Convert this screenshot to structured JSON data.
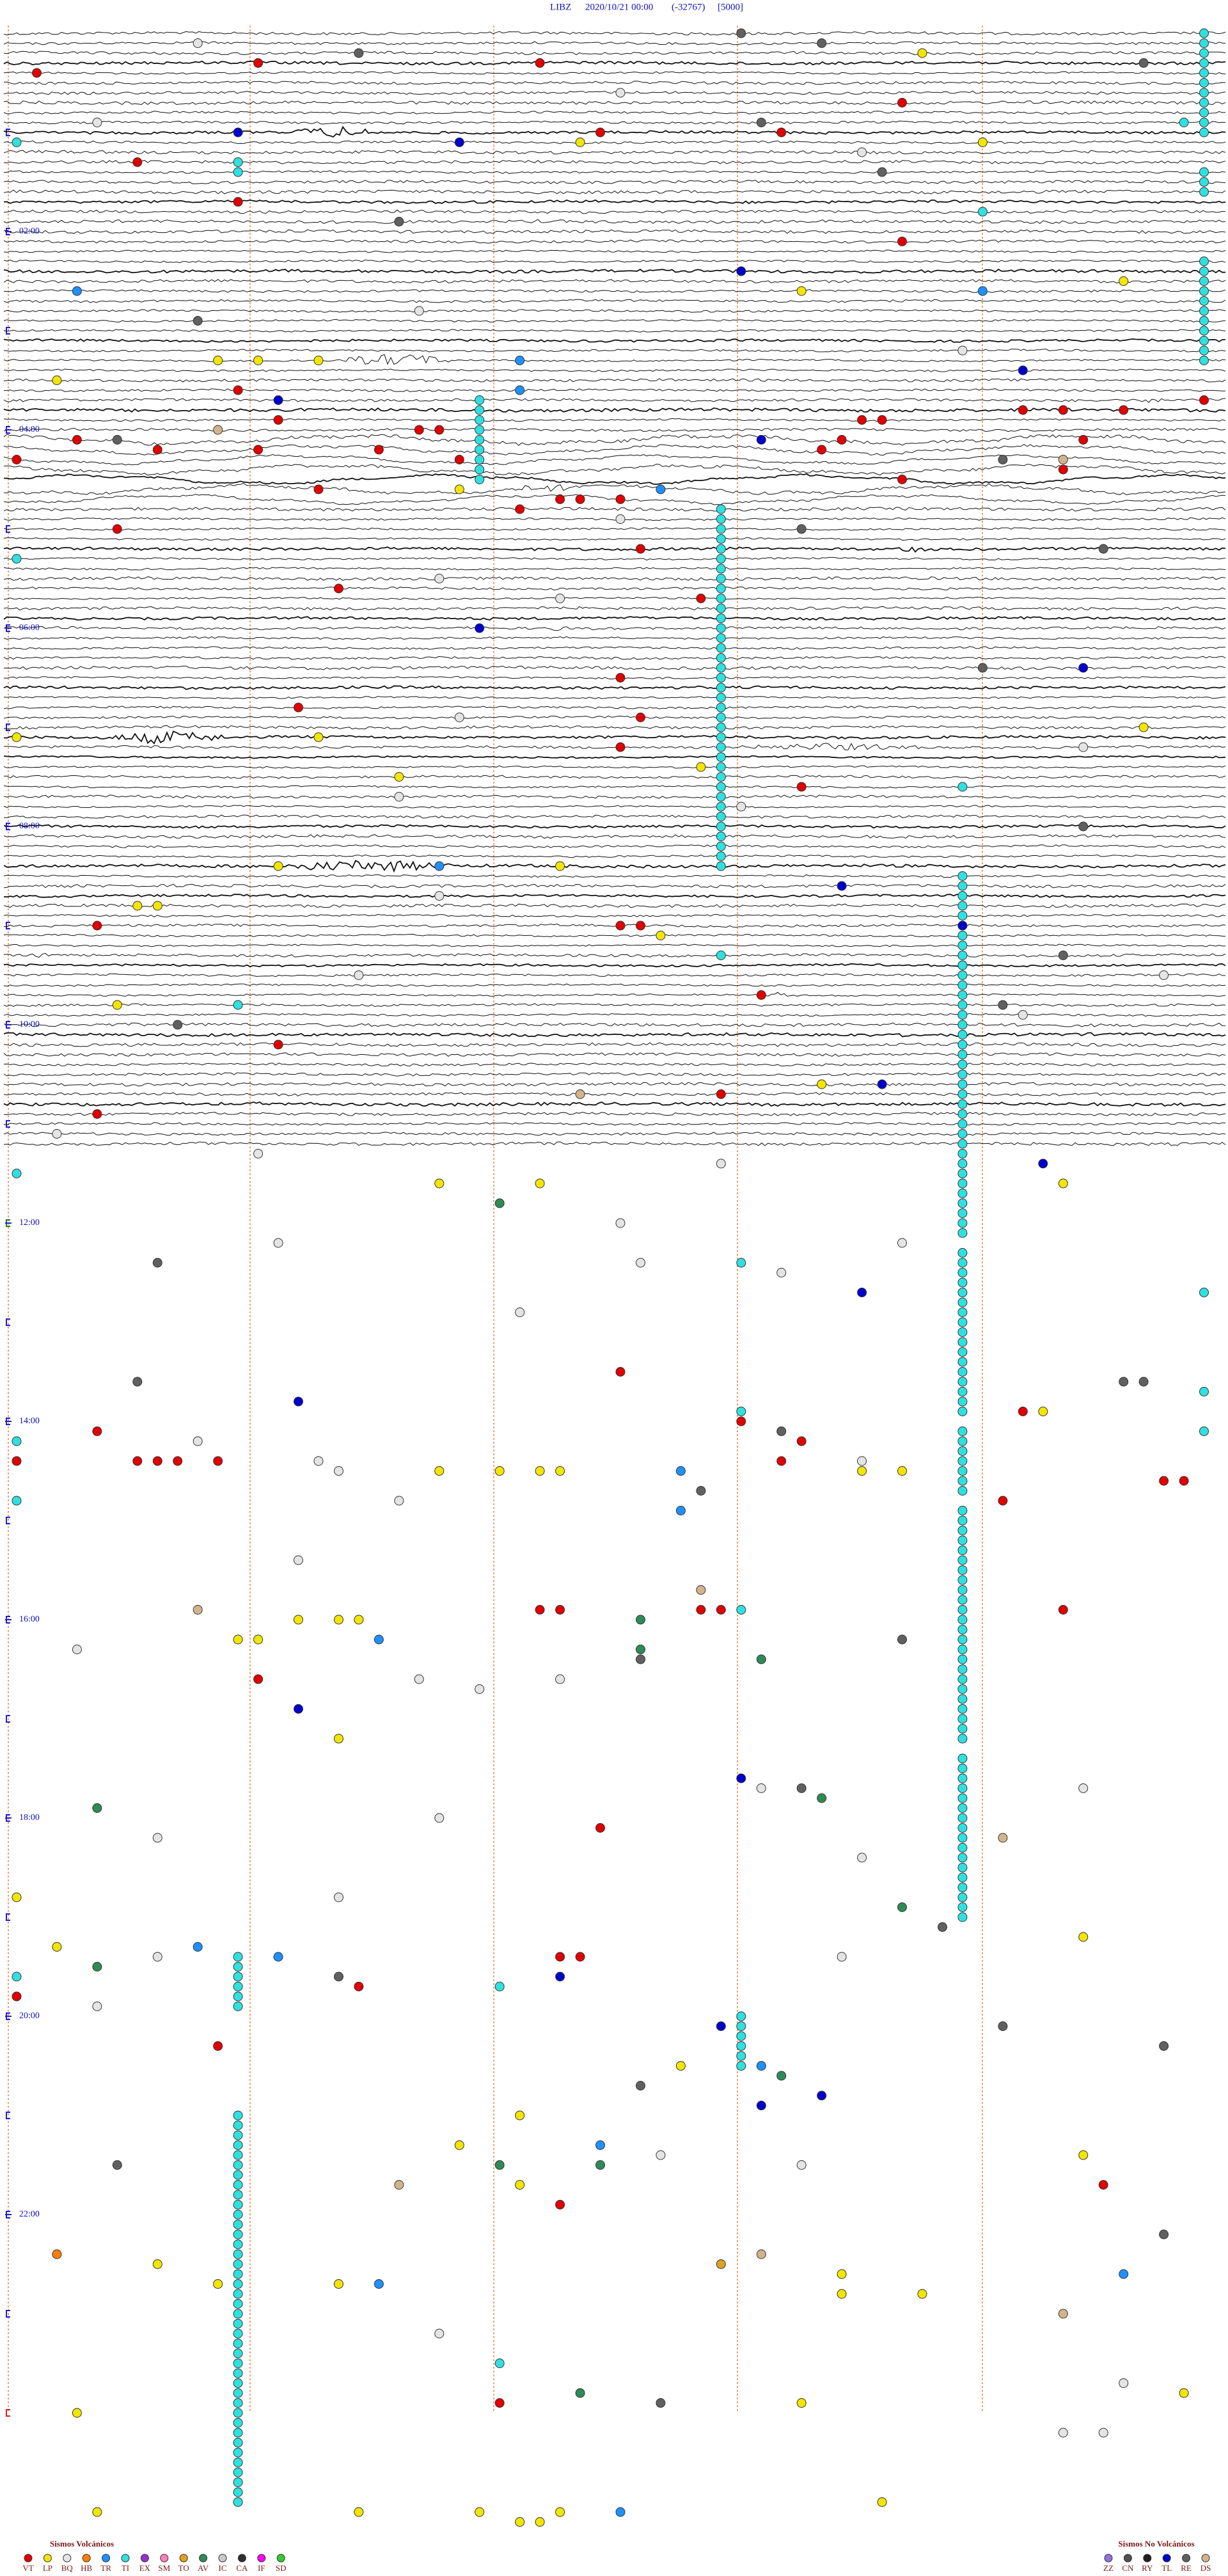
{
  "chart_data": {
    "type": "helicorder",
    "station": "LIBZ",
    "datetime": "2020/10/21 00:00",
    "code": "(-32767)",
    "scale": "[5000]",
    "ylim": [
      0,
      1440
    ],
    "yticks": [
      {
        "value": 120,
        "label": "02:00"
      },
      {
        "value": 240,
        "label": "04:00"
      },
      {
        "value": 360,
        "label": "06:00"
      },
      {
        "value": 480,
        "label": "08:00"
      },
      {
        "value": 600,
        "label": "10:00"
      },
      {
        "value": 720,
        "label": "12:00"
      },
      {
        "value": 840,
        "label": "14:00"
      },
      {
        "value": 960,
        "label": "16:00"
      },
      {
        "value": 1080,
        "label": "18:00"
      },
      {
        "value": 1200,
        "label": "20:00"
      },
      {
        "value": 1320,
        "label": "22:00"
      }
    ],
    "volcanic": {
      "title": "Sismos Volcánicos",
      "series": [
        {
          "name": "VT",
          "color": "#e00000",
          "values": [
            24.1,
            19.2,
            20.6,
            46.4,
            78.6,
            63.8,
            62.9,
            103.1,
            130.4,
            217.1,
            253.2,
            252.7,
            246.3,
            258,
            235.3,
            253.8,
            242,
            242.1,
            260.2,
            254.3,
            277.5,
            290.5,
            284.7,
            284.8,
            285,
            256,
            250.1,
            238.2,
            238.3,
            274.4,
            233,
            233.2,
            233.5,
            251.3,
            269.2,
            227.9,
            300.5,
            315.1,
            337.6,
            345.4,
            393,
            409.4,
            417.1,
            435,
            459.9,
            540.4,
            543,
            543.1,
            568.7,
            585.7,
            613.3,
            645.5,
            654.4,
            846.4,
            864.6,
            864.7,
            864.8,
            865,
            813,
            843.6,
            855.9,
            867.8,
            892.9,
            839,
            959.2,
            881.7,
            881.8,
            864,
            956.6,
            956.7,
            957.4,
            957.5,
            997.2,
            1088.9,
            1183.7,
            1219,
            1188,
            1166.7,
            1166.8,
            1316.7,
            1307.4,
            1436.4
          ]
        },
        {
          "name": "LP",
          "color": "#f2e600",
          "values": [
            16.5,
            70.8,
            68.8,
            159.9,
            155.5,
            210.2,
            199,
            199.2,
            199.5,
            278.2,
            427.5,
            451.9,
            447.4,
            425.6,
            426,
            528.6,
            528.7,
            505.3,
            506.7,
            588.5,
            640,
            549.2,
            698.1,
            698.6,
            701.2,
            839.1,
            872.1,
            872.4,
            872.6,
            872.7,
            874.2,
            874.4,
            961.4,
            961.6,
            961.7,
            973.1,
            973.2,
            1033.6,
            1128,
            1158.2,
            1157.3,
            1233.3,
            1262.5,
            1280.2,
            1289.3,
            1304.5,
            1350.7,
            1363,
            1363.6,
            1360.1,
            1372.1,
            1372.5,
            1433.8,
            1437.9,
            1440.3,
            1500.4,
            1501.7,
            1502.3,
            1508.5,
            1508.6,
            1502.7,
            1498.3
          ]
        },
        {
          "name": "BQ",
          "color": "#e4e4e4",
          "values": [
            6.9,
            39,
            54.4,
            76.2,
            196.7,
            170,
            297,
            332.1,
            344.7,
            416.2,
            437.3,
            463.9,
            471.6,
            524.1,
            571.7,
            599,
            575.7,
            666.2,
            679.2,
            687.5,
            733.3,
            723,
            776.5,
            747.1,
            753.8,
            736.4,
            852.9,
            865.5,
            871.6,
            889.9,
            868.2,
            925.4,
            978.3,
            998.7,
            998,
            1004.3,
            1065.7,
            1067.3,
            1092.7,
            1082.1,
            1108.2,
            1129.6,
            1164.7,
            1194.4,
            1168.1,
            1287.2,
            1293.9,
            1394.1,
            1427.5,
            1457.2,
            1457.4
          ]
        },
        {
          "name": "HB",
          "color": "#ff7f00",
          "values": [
            1344.2
          ]
        },
        {
          "name": "TR",
          "color": "#1e90ff",
          "values": [
            156.3,
            200.5,
            218.5,
            279.2,
            506.1,
            973.8,
            873.3,
            897.3,
            1158.9,
            1165.3,
            1233.7,
            1280.9,
            1363.8,
            1361.5,
            1503,
            160.8
          ]
        },
        {
          "name": "TI",
          "color": "#30e0e0",
          "values": [
            5.9,
            11.9,
            17.9,
            23.9,
            29.9,
            35.9,
            41.9,
            47.9,
            53.9,
            59.9,
            65.9,
            89.9,
            95.9,
            101.9,
            143.9,
            149.9,
            155.9,
            161.9,
            167.9,
            173.9,
            179.9,
            185.9,
            191.9,
            197.9,
            203.9,
            79.1,
            85.1,
            224.3,
            230.3,
            236.3,
            242.3,
            248.3,
            254.3,
            260.3,
            266.3,
            272.3,
            291.5,
            297.5,
            303.5,
            309.5,
            315.5,
            321.5,
            327.5,
            333.5,
            339.5,
            345.5,
            351.5,
            357.5,
            363.5,
            369.5,
            375.5,
            381.5,
            387.5,
            393.5,
            399.5,
            405.5,
            411.5,
            417.5,
            423.5,
            429.5,
            435.5,
            441.5,
            447.5,
            453.5,
            459.5,
            465.5,
            471.5,
            477.5,
            483.5,
            489.5,
            495.5,
            501.5,
            507.5,
            514.7,
            520.7,
            526.7,
            532.7,
            538.7,
            544.7,
            550.7,
            556.7,
            562.7,
            568.7,
            574.7,
            580.7,
            586.7,
            592.7,
            598.7,
            604.7,
            610.7,
            616.7,
            622.7,
            628.7,
            634.7,
            640.7,
            646.7,
            652.7,
            658.7,
            664.7,
            670.7,
            676.7,
            682.7,
            688.7,
            694.7,
            700.7,
            706.7,
            712.7,
            718.7,
            724.7,
            730.7,
            742.7,
            748.7,
            754.7,
            760.7,
            766.7,
            772.7,
            778.7,
            784.7,
            790.7,
            796.7,
            802.7,
            808.7,
            814.7,
            820.7,
            826.7,
            832.7,
            838.7,
            850.7,
            856.7,
            862.7,
            868.7,
            874.7,
            880.7,
            886.7,
            898.7,
            904.7,
            910.7,
            916.7,
            922.7,
            928.7,
            934.7,
            940.7,
            946.7,
            952.7,
            958.7,
            964.7,
            970.7,
            976.7,
            982.7,
            988.7,
            994.7,
            1000.7,
            1006.7,
            1012.7,
            1018.7,
            1024.7,
            1030.7,
            1036.7,
            1048.7,
            1054.7,
            1060.7,
            1066.7,
            1072.7,
            1078.7,
            1084.7,
            1090.7,
            1096.7,
            1102.7,
            1108.7,
            1114.7,
            1120.7,
            1126.7,
            1132.7,
            1138.7,
            1144.7,
            1165.1,
            1171.1,
            1177.1,
            1183.1,
            1189.1,
            1195.1,
            1203.6,
            1209.6,
            1215.6,
            1221.6,
            1227.6,
            1233.6,
            1261.1,
            1267.1,
            1273.1,
            1279.1,
            1285.1,
            1291.1,
            1297.1,
            1303.1,
            1309.1,
            1315.1,
            1321.1,
            1327.1,
            1333.1,
            1339.1,
            1345.1,
            1351.1,
            1357.1,
            1363.1,
            1369.1,
            1375.1,
            1381.1,
            1387.1,
            1393.1,
            1399.1,
            1405.1,
            1411.1,
            1417.1,
            1423.1,
            1429.1,
            1435.1,
            1441.1,
            1447.1,
            1453.1,
            1459.1,
            1465.1,
            1471.1,
            1477.1,
            1483.1,
            1489.1,
            1495.1,
            66,
            318,
            589.1,
            561.5,
            747.6,
            837.6,
            957.6,
            767.9,
            827.9,
            851.9,
            690,
            852,
            888,
            1176,
            1184.4,
            1412.4,
            460.7,
            112.8,
            59.8
          ]
        },
        {
          "name": "EX",
          "color": "#9932cc",
          "values": []
        },
        {
          "name": "SM",
          "color": "#ff80c0",
          "values": []
        },
        {
          "name": "TO",
          "color": "#e0a020",
          "values": [
            1353.5
          ]
        },
        {
          "name": "AV",
          "color": "#2e8b57",
          "values": [
            710.4,
            963.1,
            981.1,
            987.7,
            1074.4,
            1072,
            1170.4,
            1138.4,
            1239.8,
            1292.4,
            1292.9,
            1430.8
          ]
        },
        {
          "name": "IC",
          "color": "#c8c8c8",
          "values": []
        },
        {
          "name": "CA",
          "color": "#303030",
          "values": []
        },
        {
          "name": "IF",
          "color": "#ff00ff",
          "values": []
        },
        {
          "name": "SD",
          "color": "#32cd32",
          "values": []
        }
      ]
    },
    "non_volcanic": {
      "title": "Sismos No Volcánicos",
      "series": [
        {
          "name": "ZZ",
          "color": "#9370db",
          "values": []
        },
        {
          "name": "CN",
          "color": "#505050",
          "values": []
        },
        {
          "name": "RY",
          "color": "#202020",
          "values": []
        },
        {
          "name": "TL",
          "color": "#0000cd",
          "values": [
            68.2,
            61.1,
            223.3,
            249.7,
            362.3,
            147.6,
            209,
            389.3,
            520.1,
            640.3,
            544.7,
            689.1,
            829.4,
            766.2,
            1015.4,
            1059.6,
            1178.7,
            1209.5,
            1252,
            1257.7
          ]
        },
        {
          "name": "RE",
          "color": "#606060",
          "values": [
            3.6,
            13.7,
            23.6,
            57.7,
            10,
            115.9,
            88.3,
            174.9,
            246.5,
            262.9,
            303.9,
            317.4,
            388.8,
            485.3,
            563.2,
            592.9,
            600.8,
            744.7,
            816.6,
            849.8,
            885.4,
            821.5,
            821.6,
            987.1,
            976.4,
            1065.9,
            1150.6,
            1177.6,
            1210.9,
            1223.7,
            1290.5,
            1245.1,
            1437.2,
            1337.7
          ]
        },
        {
          "name": "DS",
          "color": "#d2b48c",
          "values": [
            1096.9,
            644.8,
            954.9,
            945.4,
            1303.9,
            1347.7,
            1385.2,
            263.2,
            241
          ]
        }
      ]
    }
  }
}
